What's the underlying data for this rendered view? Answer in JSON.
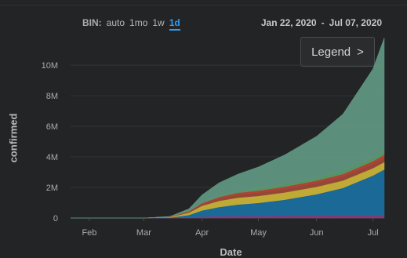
{
  "controls": {
    "bin_label": "BIN:",
    "bin_options": [
      "auto",
      "1mo",
      "1w",
      "1d"
    ],
    "bin_selected": "1d",
    "date_start": "Jan 22, 2020",
    "date_sep": "-",
    "date_end": "Jul 07, 2020",
    "legend_label": "Legend",
    "legend_icon": "chevron-right-icon"
  },
  "chart_data": {
    "type": "area",
    "stacked": true,
    "xlabel": "Date",
    "ylabel": "confirmed",
    "x_ticks": [
      "Feb",
      "Mar",
      "Apr",
      "May",
      "Jun",
      "Jul"
    ],
    "y_ticks": [
      "0",
      "2M",
      "4M",
      "6M",
      "8M",
      "10M"
    ],
    "ylim": [
      0,
      11800000
    ],
    "xlim": [
      "2020-01-22",
      "2020-07-07"
    ],
    "x": [
      "2020-01-22",
      "2020-03-01",
      "2020-03-15",
      "2020-03-25",
      "2020-04-01",
      "2020-04-10",
      "2020-04-20",
      "2020-05-01",
      "2020-05-15",
      "2020-06-01",
      "2020-06-15",
      "2020-07-01",
      "2020-07-07"
    ],
    "series": [
      {
        "color": "#8a3a7a",
        "values": [
          0,
          0,
          0.01,
          0.05,
          0.1,
          0.12,
          0.13,
          0.14,
          0.15,
          0.16,
          0.17,
          0.18,
          0.18
        ]
      },
      {
        "color": "#1a6e9c",
        "values": [
          0,
          0,
          0.02,
          0.15,
          0.4,
          0.6,
          0.75,
          0.85,
          1.05,
          1.4,
          1.8,
          2.6,
          3.0
        ]
      },
      {
        "color": "#c8b236",
        "values": [
          0,
          0,
          0.03,
          0.15,
          0.3,
          0.4,
          0.45,
          0.45,
          0.47,
          0.48,
          0.48,
          0.48,
          0.48
        ]
      },
      {
        "color": "#9a4a3a",
        "values": [
          0,
          0,
          0.01,
          0.05,
          0.1,
          0.15,
          0.2,
          0.22,
          0.24,
          0.26,
          0.27,
          0.28,
          0.28
        ]
      },
      {
        "color": "#b84433",
        "values": [
          0,
          0,
          0.01,
          0.04,
          0.08,
          0.1,
          0.12,
          0.13,
          0.14,
          0.15,
          0.16,
          0.18,
          0.2
        ]
      },
      {
        "color": "#5a9a6a",
        "values": [
          0,
          0,
          0.01,
          0.02,
          0.04,
          0.08,
          0.12,
          0.15,
          0.18,
          0.2,
          0.22,
          0.24,
          0.25
        ]
      },
      {
        "color": "#5f9680",
        "values": [
          0,
          0,
          0.02,
          0.14,
          0.5,
          0.85,
          1.1,
          1.4,
          1.9,
          2.7,
          3.7,
          5.8,
          7.4
        ]
      }
    ]
  }
}
